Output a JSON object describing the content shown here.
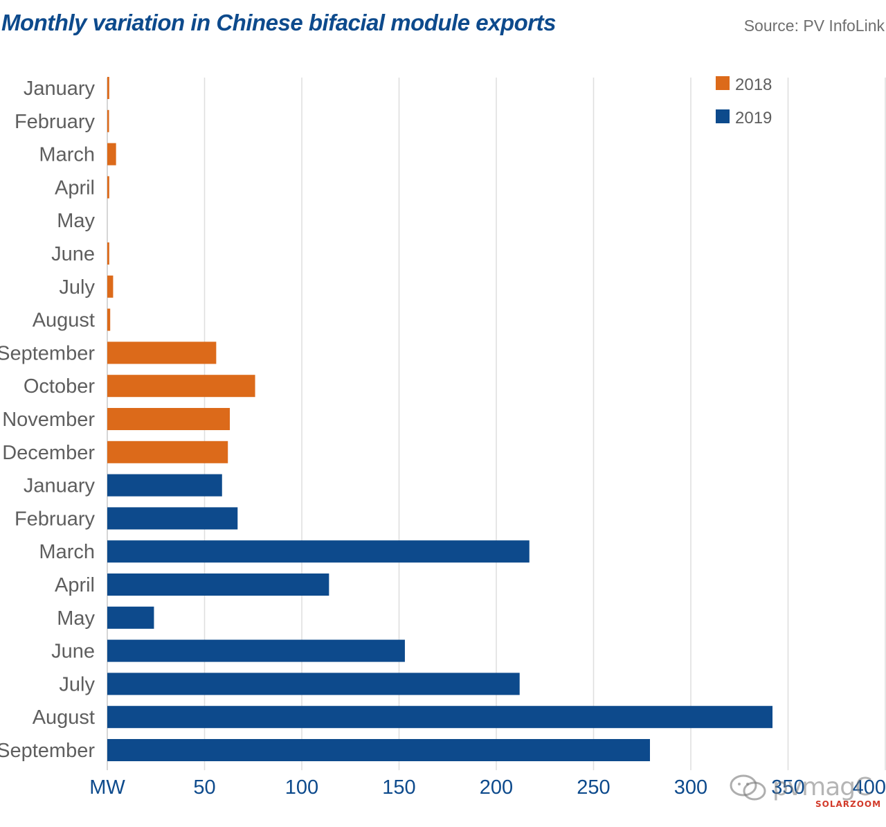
{
  "chart_data": {
    "type": "bar",
    "orientation": "horizontal",
    "title": "Monthly variation in Chinese bifacial module exports",
    "source": "Source: PV InfoLink",
    "categories": [
      "January",
      "February",
      "March",
      "April",
      "May",
      "June",
      "July",
      "August",
      "September",
      "October",
      "November",
      "December",
      "January",
      "February",
      "March",
      "April",
      "May",
      "June",
      "July",
      "August",
      "September"
    ],
    "series": [
      {
        "name": "2018",
        "color": "#dc6a1a",
        "values": [
          1,
          0.5,
          4.5,
          1,
          0,
          1,
          3,
          1.5,
          56,
          76,
          63,
          62,
          null,
          null,
          null,
          null,
          null,
          null,
          null,
          null,
          null
        ]
      },
      {
        "name": "2019",
        "color": "#0d4a8c",
        "values": [
          null,
          null,
          null,
          null,
          null,
          null,
          null,
          null,
          null,
          null,
          null,
          null,
          59,
          67,
          217,
          114,
          24,
          153,
          212,
          342,
          279
        ]
      }
    ],
    "x_ticks": [
      "MW",
      "50",
      "100",
      "150",
      "200",
      "250",
      "300",
      "350",
      "400"
    ],
    "xlim": [
      0,
      400
    ],
    "grid": "vertical",
    "legend_position": "top-right"
  },
  "watermark": {
    "text": "pvmagC",
    "sub": "SOLARZOOM",
    "icon": "chat-bubbles-icon"
  }
}
